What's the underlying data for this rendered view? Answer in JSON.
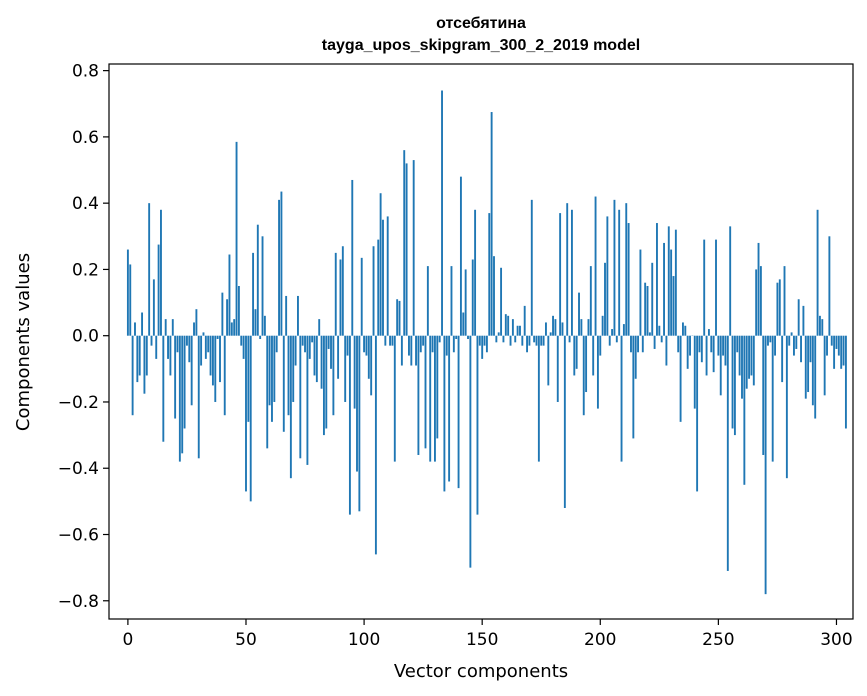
{
  "chart_data": {
    "type": "bar",
    "title": "отсебятина",
    "subtitle": "tayga_upos_skipgram_300_2_2019 model",
    "xlabel": "Vector components",
    "ylabel": "Components values",
    "xlim": [
      -8,
      307
    ],
    "ylim": [
      -0.855,
      0.82
    ],
    "xticks": [
      0,
      50,
      100,
      150,
      200,
      250,
      300
    ],
    "yticks": [
      -0.8,
      -0.6,
      -0.4,
      -0.2,
      0.0,
      0.2,
      0.4,
      0.6,
      0.8
    ],
    "xtick_labels": [
      "0",
      "50",
      "100",
      "150",
      "200",
      "250",
      "300"
    ],
    "ytick_labels": [
      "−0.8",
      "−0.6",
      "−0.4",
      "−0.2",
      "0.0",
      "0.2",
      "0.4",
      "0.6",
      "0.8"
    ],
    "bar_color": "#1f77b4",
    "grid": false,
    "legend": "none",
    "x_start": 0,
    "values": [
      0.26,
      0.215,
      -0.24,
      0.04,
      -0.14,
      -0.12,
      0.07,
      -0.175,
      -0.12,
      0.4,
      -0.03,
      0.17,
      -0.07,
      0.275,
      0.38,
      -0.32,
      0.05,
      -0.07,
      -0.12,
      0.05,
      -0.25,
      -0.05,
      -0.38,
      -0.355,
      -0.28,
      -0.03,
      -0.08,
      -0.21,
      0.04,
      0.08,
      -0.37,
      -0.09,
      0.01,
      -0.07,
      -0.05,
      -0.12,
      -0.15,
      -0.2,
      -0.01,
      -0.14,
      0.13,
      -0.24,
      0.11,
      0.245,
      0.04,
      0.05,
      0.585,
      0.15,
      -0.03,
      -0.07,
      -0.47,
      -0.26,
      -0.5,
      0.25,
      0.08,
      0.335,
      -0.01,
      0.3,
      0.06,
      -0.34,
      -0.21,
      -0.26,
      -0.2,
      -0.05,
      0.41,
      0.435,
      -0.29,
      0.12,
      -0.24,
      -0.43,
      -0.2,
      -0.09,
      0.12,
      -0.37,
      -0.03,
      -0.05,
      -0.39,
      -0.07,
      -0.02,
      -0.12,
      -0.14,
      0.05,
      -0.16,
      -0.3,
      -0.28,
      -0.04,
      -0.1,
      -0.24,
      0.25,
      -0.13,
      0.23,
      0.27,
      -0.2,
      -0.06,
      -0.54,
      0.47,
      -0.22,
      -0.41,
      -0.53,
      0.235,
      -0.05,
      -0.06,
      -0.13,
      -0.18,
      0.27,
      -0.66,
      0.29,
      0.43,
      0.35,
      -0.03,
      0.36,
      -0.03,
      -0.03,
      -0.38,
      0.11,
      0.105,
      -0.09,
      0.56,
      0.52,
      -0.06,
      -0.09,
      0.53,
      -0.09,
      -0.36,
      -0.05,
      -0.03,
      -0.34,
      0.21,
      -0.38,
      -0.05,
      -0.38,
      -0.31,
      -0.02,
      0.74,
      -0.47,
      -0.06,
      -0.44,
      0.21,
      -0.05,
      -0.01,
      -0.46,
      0.48,
      0.07,
      0.2,
      -0.01,
      -0.7,
      0.23,
      0.38,
      -0.54,
      -0.03,
      -0.07,
      -0.03,
      -0.05,
      0.37,
      0.675,
      0.24,
      -0.02,
      0.01,
      0.205,
      -0.02,
      0.065,
      0.06,
      -0.03,
      0.05,
      -0.02,
      0.03,
      0.03,
      -0.03,
      0.09,
      -0.05,
      -0.03,
      0.41,
      -0.02,
      -0.03,
      -0.38,
      -0.03,
      -0.03,
      0.04,
      -0.15,
      0.01,
      0.06,
      0.05,
      -0.2,
      0.37,
      0.04,
      -0.52,
      0.4,
      -0.02,
      0.38,
      -0.12,
      -0.1,
      0.13,
      0.05,
      -0.24,
      -0.17,
      0.05,
      0.21,
      -0.12,
      0.42,
      -0.22,
      -0.06,
      0.06,
      0.22,
      0.36,
      -0.03,
      0.02,
      0.41,
      -0.02,
      0.38,
      -0.38,
      0.035,
      0.4,
      0.34,
      -0.05,
      -0.31,
      -0.13,
      -0.05,
      0.26,
      -0.05,
      0.16,
      0.15,
      0.01,
      0.22,
      -0.04,
      0.34,
      0.03,
      -0.02,
      0.28,
      -0.09,
      0.33,
      0.26,
      0.18,
      0.32,
      -0.05,
      -0.26,
      0.04,
      0.03,
      -0.1,
      -0.06,
      0.0,
      -0.22,
      -0.47,
      -0.05,
      -0.08,
      0.29,
      -0.12,
      0.02,
      -0.05,
      -0.11,
      0.29,
      -0.06,
      -0.18,
      -0.06,
      -0.09,
      -0.71,
      0.33,
      -0.28,
      -0.3,
      -0.05,
      -0.12,
      -0.19,
      -0.45,
      -0.16,
      -0.13,
      -0.12,
      -0.15,
      0.2,
      0.28,
      0.21,
      -0.36,
      -0.78,
      -0.03,
      -0.02,
      -0.38,
      -0.06,
      0.16,
      0.17,
      -0.14,
      0.21,
      -0.43,
      -0.03,
      0.01,
      -0.06,
      -0.04,
      0.11,
      -0.08,
      0.09,
      -0.19,
      -0.17,
      -0.08,
      -0.21,
      -0.25,
      0.38,
      0.06,
      0.05,
      -0.18,
      -0.06,
      0.3,
      -0.03,
      -0.1,
      -0.04,
      -0.06,
      -0.1,
      -0.09,
      -0.28
    ]
  }
}
